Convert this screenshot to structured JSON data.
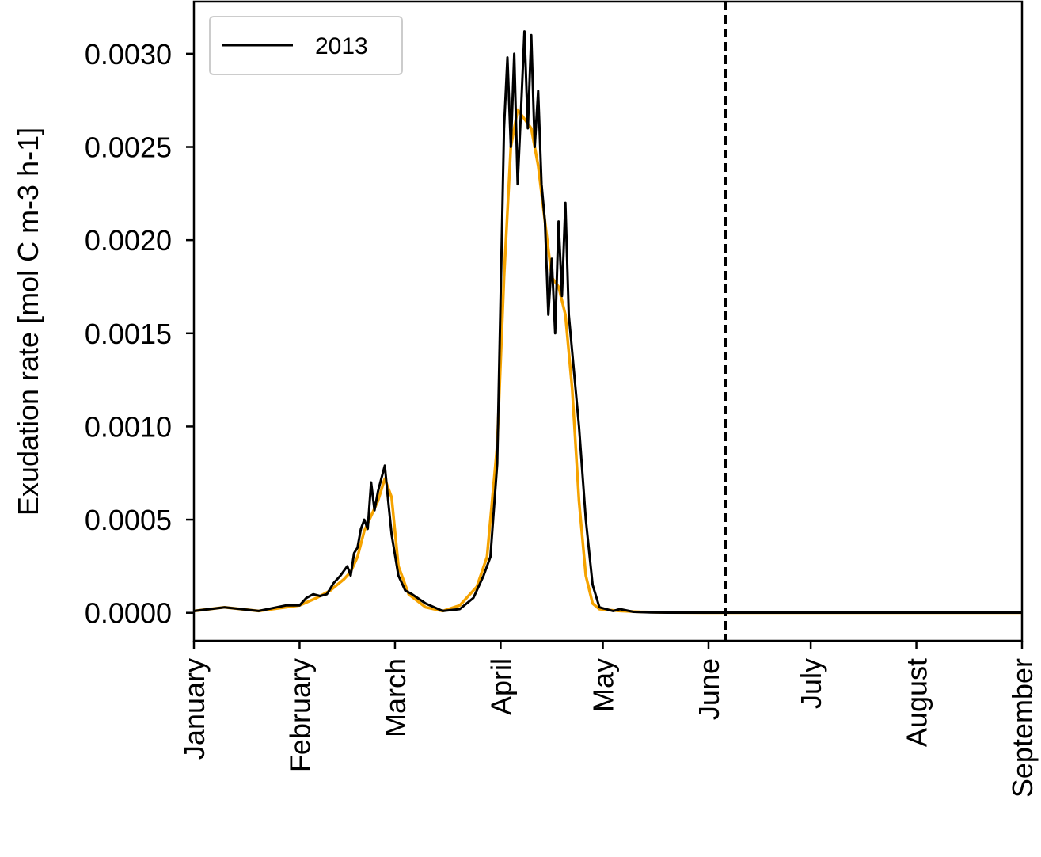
{
  "chart_data": {
    "type": "line",
    "xlabel": "",
    "ylabel": "Exudation rate [mol C m-3 h-1]",
    "x_ticks": [
      "January",
      "February",
      "March",
      "April",
      "May",
      "June",
      "July",
      "August",
      "September"
    ],
    "y_ticks": [
      "0.0000",
      "0.0005",
      "0.0010",
      "0.0015",
      "0.0020",
      "0.0025",
      "0.0030"
    ],
    "xlim": [
      "2013-01-01",
      "2013-09-01"
    ],
    "ylim": [
      -0.00015,
      0.00328
    ],
    "legend": {
      "position": "top-left",
      "entries": [
        "2013"
      ]
    },
    "vline": {
      "x": "2013-06-06",
      "style": "dashed",
      "color": "#000000"
    },
    "series": [
      {
        "name": "",
        "color": "#f5a300",
        "x": [
          "2013-01-01",
          "2013-01-10",
          "2013-01-20",
          "2013-01-28",
          "2013-02-01",
          "2013-02-06",
          "2013-02-10",
          "2013-02-14",
          "2013-02-16",
          "2013-02-18",
          "2013-02-20",
          "2013-02-22",
          "2013-02-24",
          "2013-02-26",
          "2013-02-28",
          "2013-03-02",
          "2013-03-05",
          "2013-03-10",
          "2013-03-15",
          "2013-03-20",
          "2013-03-25",
          "2013-03-28",
          "2013-03-31",
          "2013-04-02",
          "2013-04-04",
          "2013-04-06",
          "2013-04-08",
          "2013-04-10",
          "2013-04-12",
          "2013-04-14",
          "2013-04-16",
          "2013-04-18",
          "2013-04-20",
          "2013-04-22",
          "2013-04-24",
          "2013-04-26",
          "2013-04-28",
          "2013-04-30",
          "2013-05-03",
          "2013-05-06",
          "2013-05-12",
          "2013-05-20",
          "2013-06-01",
          "2013-07-01",
          "2013-08-01",
          "2013-09-01"
        ],
        "y": [
          1e-05,
          3e-05,
          1e-05,
          3e-05,
          4e-05,
          8e-05,
          0.00012,
          0.00018,
          0.00022,
          0.0003,
          0.00044,
          0.00052,
          0.0006,
          0.00072,
          0.00062,
          0.00025,
          0.0001,
          3e-05,
          1e-05,
          4e-05,
          0.00014,
          0.0003,
          0.0009,
          0.0018,
          0.0025,
          0.0027,
          0.00265,
          0.0026,
          0.0024,
          0.0021,
          0.0018,
          0.00175,
          0.0016,
          0.0012,
          0.0006,
          0.0002,
          5e-05,
          2e-05,
          1.5e-05,
          1e-05,
          5e-06,
          2e-06,
          1e-06,
          1e-06,
          1e-06,
          1e-06
        ]
      },
      {
        "name": "2013",
        "color": "#000000",
        "x": [
          "2013-01-01",
          "2013-01-10",
          "2013-01-20",
          "2013-01-28",
          "2013-02-01",
          "2013-02-03",
          "2013-02-05",
          "2013-02-07",
          "2013-02-09",
          "2013-02-11",
          "2013-02-13",
          "2013-02-15",
          "2013-02-16",
          "2013-02-17",
          "2013-02-18",
          "2013-02-19",
          "2013-02-20",
          "2013-02-21",
          "2013-02-22",
          "2013-02-23",
          "2013-02-24",
          "2013-02-25",
          "2013-02-26",
          "2013-02-27",
          "2013-02-28",
          "2013-03-02",
          "2013-03-04",
          "2013-03-06",
          "2013-03-10",
          "2013-03-15",
          "2013-03-20",
          "2013-03-24",
          "2013-03-27",
          "2013-03-29",
          "2013-03-31",
          "2013-04-01",
          "2013-04-02",
          "2013-04-03",
          "2013-04-04",
          "2013-04-05",
          "2013-04-06",
          "2013-04-07",
          "2013-04-08",
          "2013-04-09",
          "2013-04-10",
          "2013-04-11",
          "2013-04-12",
          "2013-04-13",
          "2013-04-14",
          "2013-04-15",
          "2013-04-16",
          "2013-04-17",
          "2013-04-18",
          "2013-04-19",
          "2013-04-20",
          "2013-04-21",
          "2013-04-22",
          "2013-04-24",
          "2013-04-26",
          "2013-04-28",
          "2013-04-30",
          "2013-05-04",
          "2013-05-06",
          "2013-05-10",
          "2013-05-15",
          "2013-05-20",
          "2013-06-01",
          "2013-07-01",
          "2013-08-01",
          "2013-09-01"
        ],
        "y": [
          1e-05,
          3e-05,
          1e-05,
          4e-05,
          4e-05,
          8e-05,
          0.0001,
          9e-05,
          0.0001,
          0.00016,
          0.0002,
          0.00025,
          0.0002,
          0.00032,
          0.00035,
          0.00045,
          0.0005,
          0.00045,
          0.0007,
          0.00055,
          0.00065,
          0.00072,
          0.00079,
          0.0006,
          0.00042,
          0.0002,
          0.00012,
          0.0001,
          5e-05,
          1e-05,
          2e-05,
          8e-05,
          0.0002,
          0.0003,
          0.0008,
          0.0017,
          0.0026,
          0.00298,
          0.0025,
          0.003,
          0.0023,
          0.0027,
          0.00312,
          0.0026,
          0.0031,
          0.0025,
          0.0028,
          0.0023,
          0.0021,
          0.0016,
          0.0019,
          0.0015,
          0.0021,
          0.0017,
          0.0022,
          0.0016,
          0.0014,
          0.001,
          0.0005,
          0.00015,
          3e-05,
          1e-05,
          2e-05,
          5e-06,
          2e-06,
          1e-06,
          1e-06,
          1e-06,
          1e-06,
          1e-06
        ]
      }
    ]
  }
}
